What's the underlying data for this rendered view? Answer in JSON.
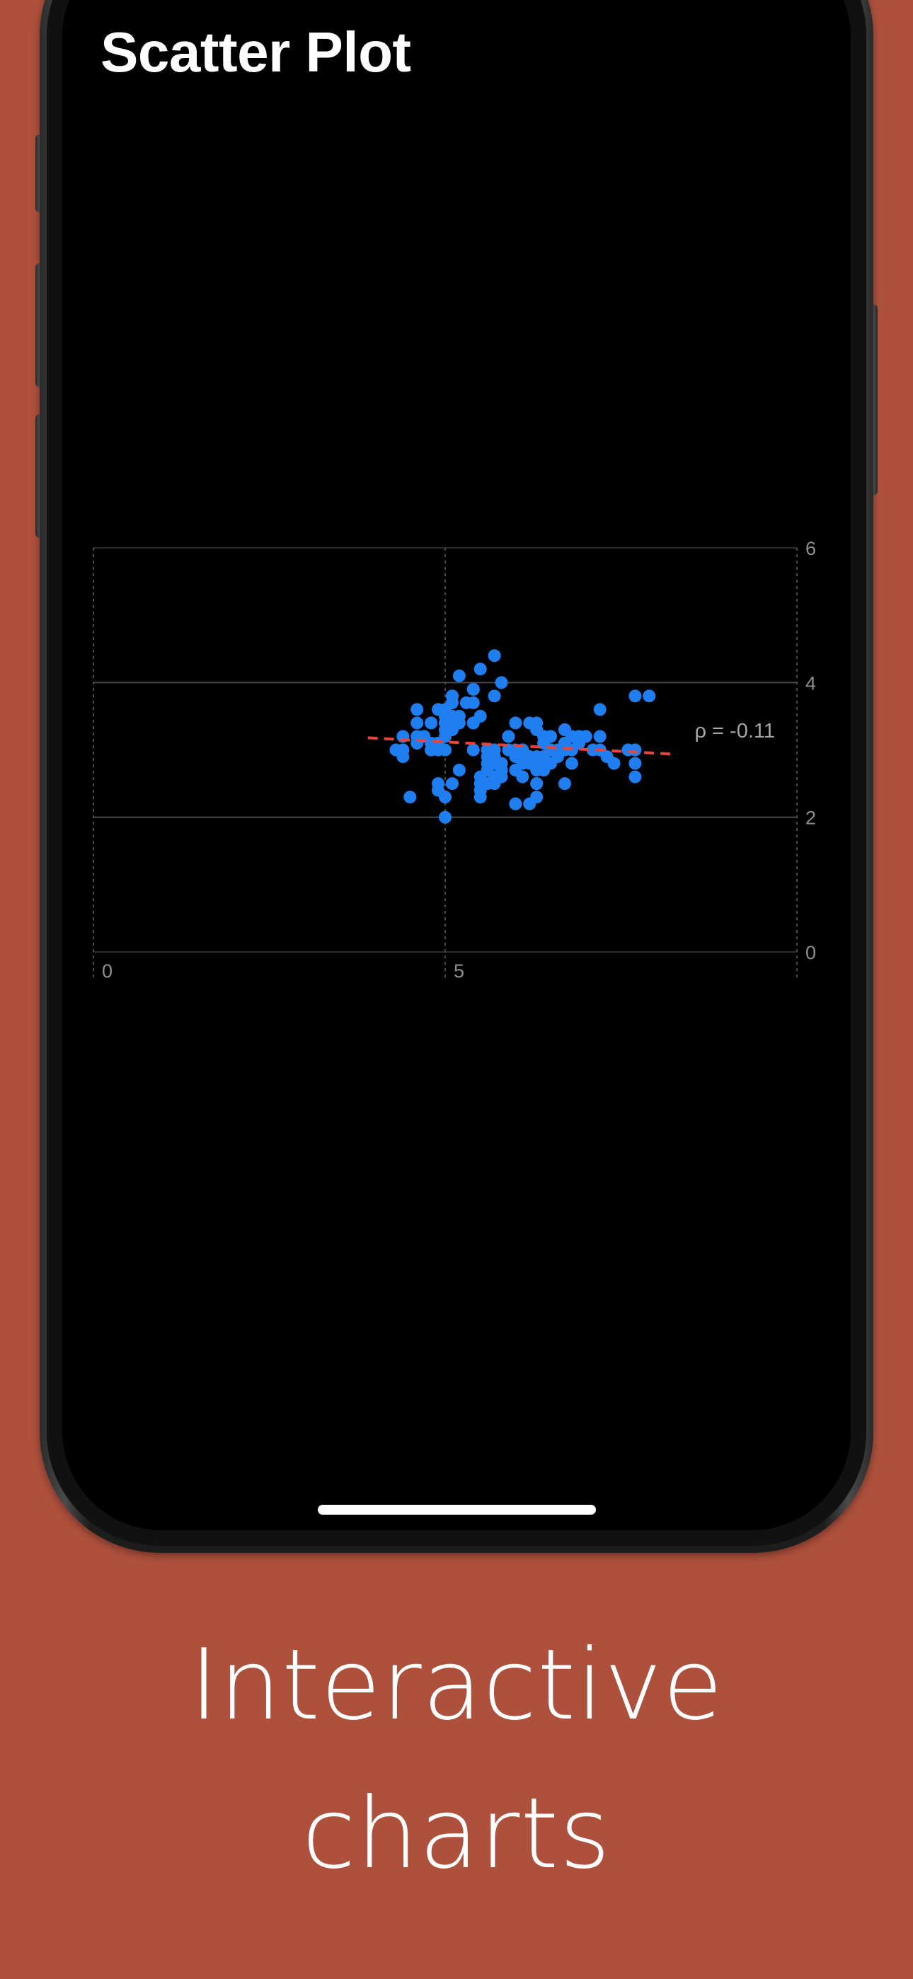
{
  "header": {
    "title": "Scatter Plot"
  },
  "caption": {
    "line1": "Interactive",
    "line2": "charts"
  },
  "colors": {
    "background": "#ad503c",
    "screen": "#000000",
    "points": "#1f7ff0",
    "trendline": "#e5453d",
    "grid": "#3a3a3a",
    "tick_label": "#8e8e93"
  },
  "chart_data": {
    "type": "scatter",
    "title": "",
    "xlabel": "",
    "ylabel": "",
    "xlim": [
      0,
      10
    ],
    "ylim": [
      0,
      6
    ],
    "x_ticks": [
      "0",
      "5"
    ],
    "y_ticks": [
      "6",
      "4",
      "2",
      "0"
    ],
    "grid": true,
    "annotation": "ρ = -0.11",
    "trendline": {
      "x": [
        3.9,
        8.2
      ],
      "y": [
        3.18,
        2.94
      ]
    },
    "series": [
      {
        "points": [
          [
            5.1,
            3.5
          ],
          [
            4.9,
            3.0
          ],
          [
            4.7,
            3.2
          ],
          [
            4.6,
            3.1
          ],
          [
            5.0,
            3.6
          ],
          [
            5.4,
            3.9
          ],
          [
            4.6,
            3.4
          ],
          [
            5.0,
            3.4
          ],
          [
            4.4,
            2.9
          ],
          [
            4.9,
            3.1
          ],
          [
            5.4,
            3.7
          ],
          [
            4.8,
            3.4
          ],
          [
            4.8,
            3.0
          ],
          [
            4.3,
            3.0
          ],
          [
            5.8,
            4.0
          ],
          [
            5.7,
            4.4
          ],
          [
            5.4,
            3.9
          ],
          [
            5.1,
            3.5
          ],
          [
            5.7,
            3.8
          ],
          [
            5.1,
            3.8
          ],
          [
            5.4,
            3.4
          ],
          [
            5.1,
            3.7
          ],
          [
            4.6,
            3.6
          ],
          [
            5.1,
            3.3
          ],
          [
            4.8,
            3.4
          ],
          [
            5.0,
            3.0
          ],
          [
            5.0,
            3.4
          ],
          [
            5.2,
            3.5
          ],
          [
            5.2,
            3.4
          ],
          [
            4.7,
            3.2
          ],
          [
            4.8,
            3.1
          ],
          [
            5.4,
            3.4
          ],
          [
            5.2,
            4.1
          ],
          [
            5.5,
            4.2
          ],
          [
            4.9,
            3.1
          ],
          [
            5.0,
            3.2
          ],
          [
            5.5,
            3.5
          ],
          [
            4.9,
            3.6
          ],
          [
            4.4,
            3.0
          ],
          [
            5.1,
            3.4
          ],
          [
            5.0,
            3.5
          ],
          [
            4.5,
            2.3
          ],
          [
            4.4,
            3.2
          ],
          [
            5.0,
            3.5
          ],
          [
            5.1,
            3.8
          ],
          [
            4.8,
            3.0
          ],
          [
            5.1,
            3.8
          ],
          [
            4.6,
            3.2
          ],
          [
            5.3,
            3.7
          ],
          [
            5.0,
            3.3
          ],
          [
            7.0,
            3.2
          ],
          [
            6.4,
            3.2
          ],
          [
            6.9,
            3.1
          ],
          [
            5.5,
            2.3
          ],
          [
            6.5,
            2.8
          ],
          [
            5.7,
            2.8
          ],
          [
            6.3,
            3.3
          ],
          [
            4.9,
            2.4
          ],
          [
            6.6,
            2.9
          ],
          [
            5.2,
            2.7
          ],
          [
            5.0,
            2.0
          ],
          [
            5.9,
            3.0
          ],
          [
            6.0,
            2.2
          ],
          [
            6.1,
            2.9
          ],
          [
            5.6,
            2.9
          ],
          [
            6.7,
            3.1
          ],
          [
            5.6,
            3.0
          ],
          [
            5.8,
            2.7
          ],
          [
            6.2,
            2.2
          ],
          [
            5.6,
            2.5
          ],
          [
            5.9,
            3.2
          ],
          [
            6.1,
            2.8
          ],
          [
            6.3,
            2.5
          ],
          [
            6.1,
            2.8
          ],
          [
            6.4,
            2.9
          ],
          [
            6.6,
            3.0
          ],
          [
            6.8,
            2.8
          ],
          [
            6.7,
            3.0
          ],
          [
            6.0,
            2.9
          ],
          [
            5.7,
            2.6
          ],
          [
            5.5,
            2.4
          ],
          [
            5.5,
            2.4
          ],
          [
            5.8,
            2.7
          ],
          [
            6.0,
            2.7
          ],
          [
            5.4,
            3.0
          ],
          [
            6.0,
            3.4
          ],
          [
            6.7,
            3.1
          ],
          [
            6.3,
            2.3
          ],
          [
            5.6,
            3.0
          ],
          [
            5.5,
            2.5
          ],
          [
            5.5,
            2.6
          ],
          [
            6.1,
            3.0
          ],
          [
            5.8,
            2.6
          ],
          [
            5.0,
            2.3
          ],
          [
            5.6,
            2.7
          ],
          [
            5.7,
            3.0
          ],
          [
            5.7,
            2.9
          ],
          [
            6.2,
            2.9
          ],
          [
            5.1,
            2.5
          ],
          [
            5.7,
            2.8
          ],
          [
            6.3,
            3.3
          ],
          [
            5.8,
            2.7
          ],
          [
            7.1,
            3.0
          ],
          [
            6.3,
            2.9
          ],
          [
            6.5,
            3.0
          ],
          [
            7.6,
            3.0
          ],
          [
            4.9,
            2.5
          ],
          [
            7.3,
            2.9
          ],
          [
            6.7,
            2.5
          ],
          [
            7.2,
            3.6
          ],
          [
            6.5,
            3.2
          ],
          [
            6.4,
            2.7
          ],
          [
            6.8,
            3.0
          ],
          [
            5.7,
            2.5
          ],
          [
            5.8,
            2.8
          ],
          [
            6.4,
            3.2
          ],
          [
            6.5,
            3.0
          ],
          [
            7.7,
            3.8
          ],
          [
            7.7,
            2.6
          ],
          [
            6.0,
            2.2
          ],
          [
            6.9,
            3.2
          ],
          [
            5.6,
            2.8
          ],
          [
            7.7,
            2.8
          ],
          [
            6.3,
            2.7
          ],
          [
            6.7,
            3.3
          ],
          [
            7.2,
            3.2
          ],
          [
            6.2,
            2.8
          ],
          [
            6.1,
            3.0
          ],
          [
            6.4,
            2.8
          ],
          [
            7.2,
            3.0
          ],
          [
            7.4,
            2.8
          ],
          [
            7.9,
            3.8
          ],
          [
            6.4,
            2.8
          ],
          [
            6.3,
            2.8
          ],
          [
            6.1,
            2.6
          ],
          [
            7.7,
            3.0
          ],
          [
            6.3,
            3.4
          ],
          [
            6.4,
            3.1
          ],
          [
            6.0,
            3.0
          ],
          [
            6.9,
            3.1
          ],
          [
            6.7,
            3.1
          ],
          [
            6.9,
            3.1
          ],
          [
            5.8,
            2.7
          ],
          [
            6.8,
            3.2
          ],
          [
            6.7,
            3.3
          ],
          [
            6.7,
            3.0
          ],
          [
            6.3,
            2.5
          ],
          [
            6.5,
            3.0
          ],
          [
            6.2,
            3.4
          ],
          [
            5.9,
            3.0
          ]
        ]
      }
    ]
  }
}
